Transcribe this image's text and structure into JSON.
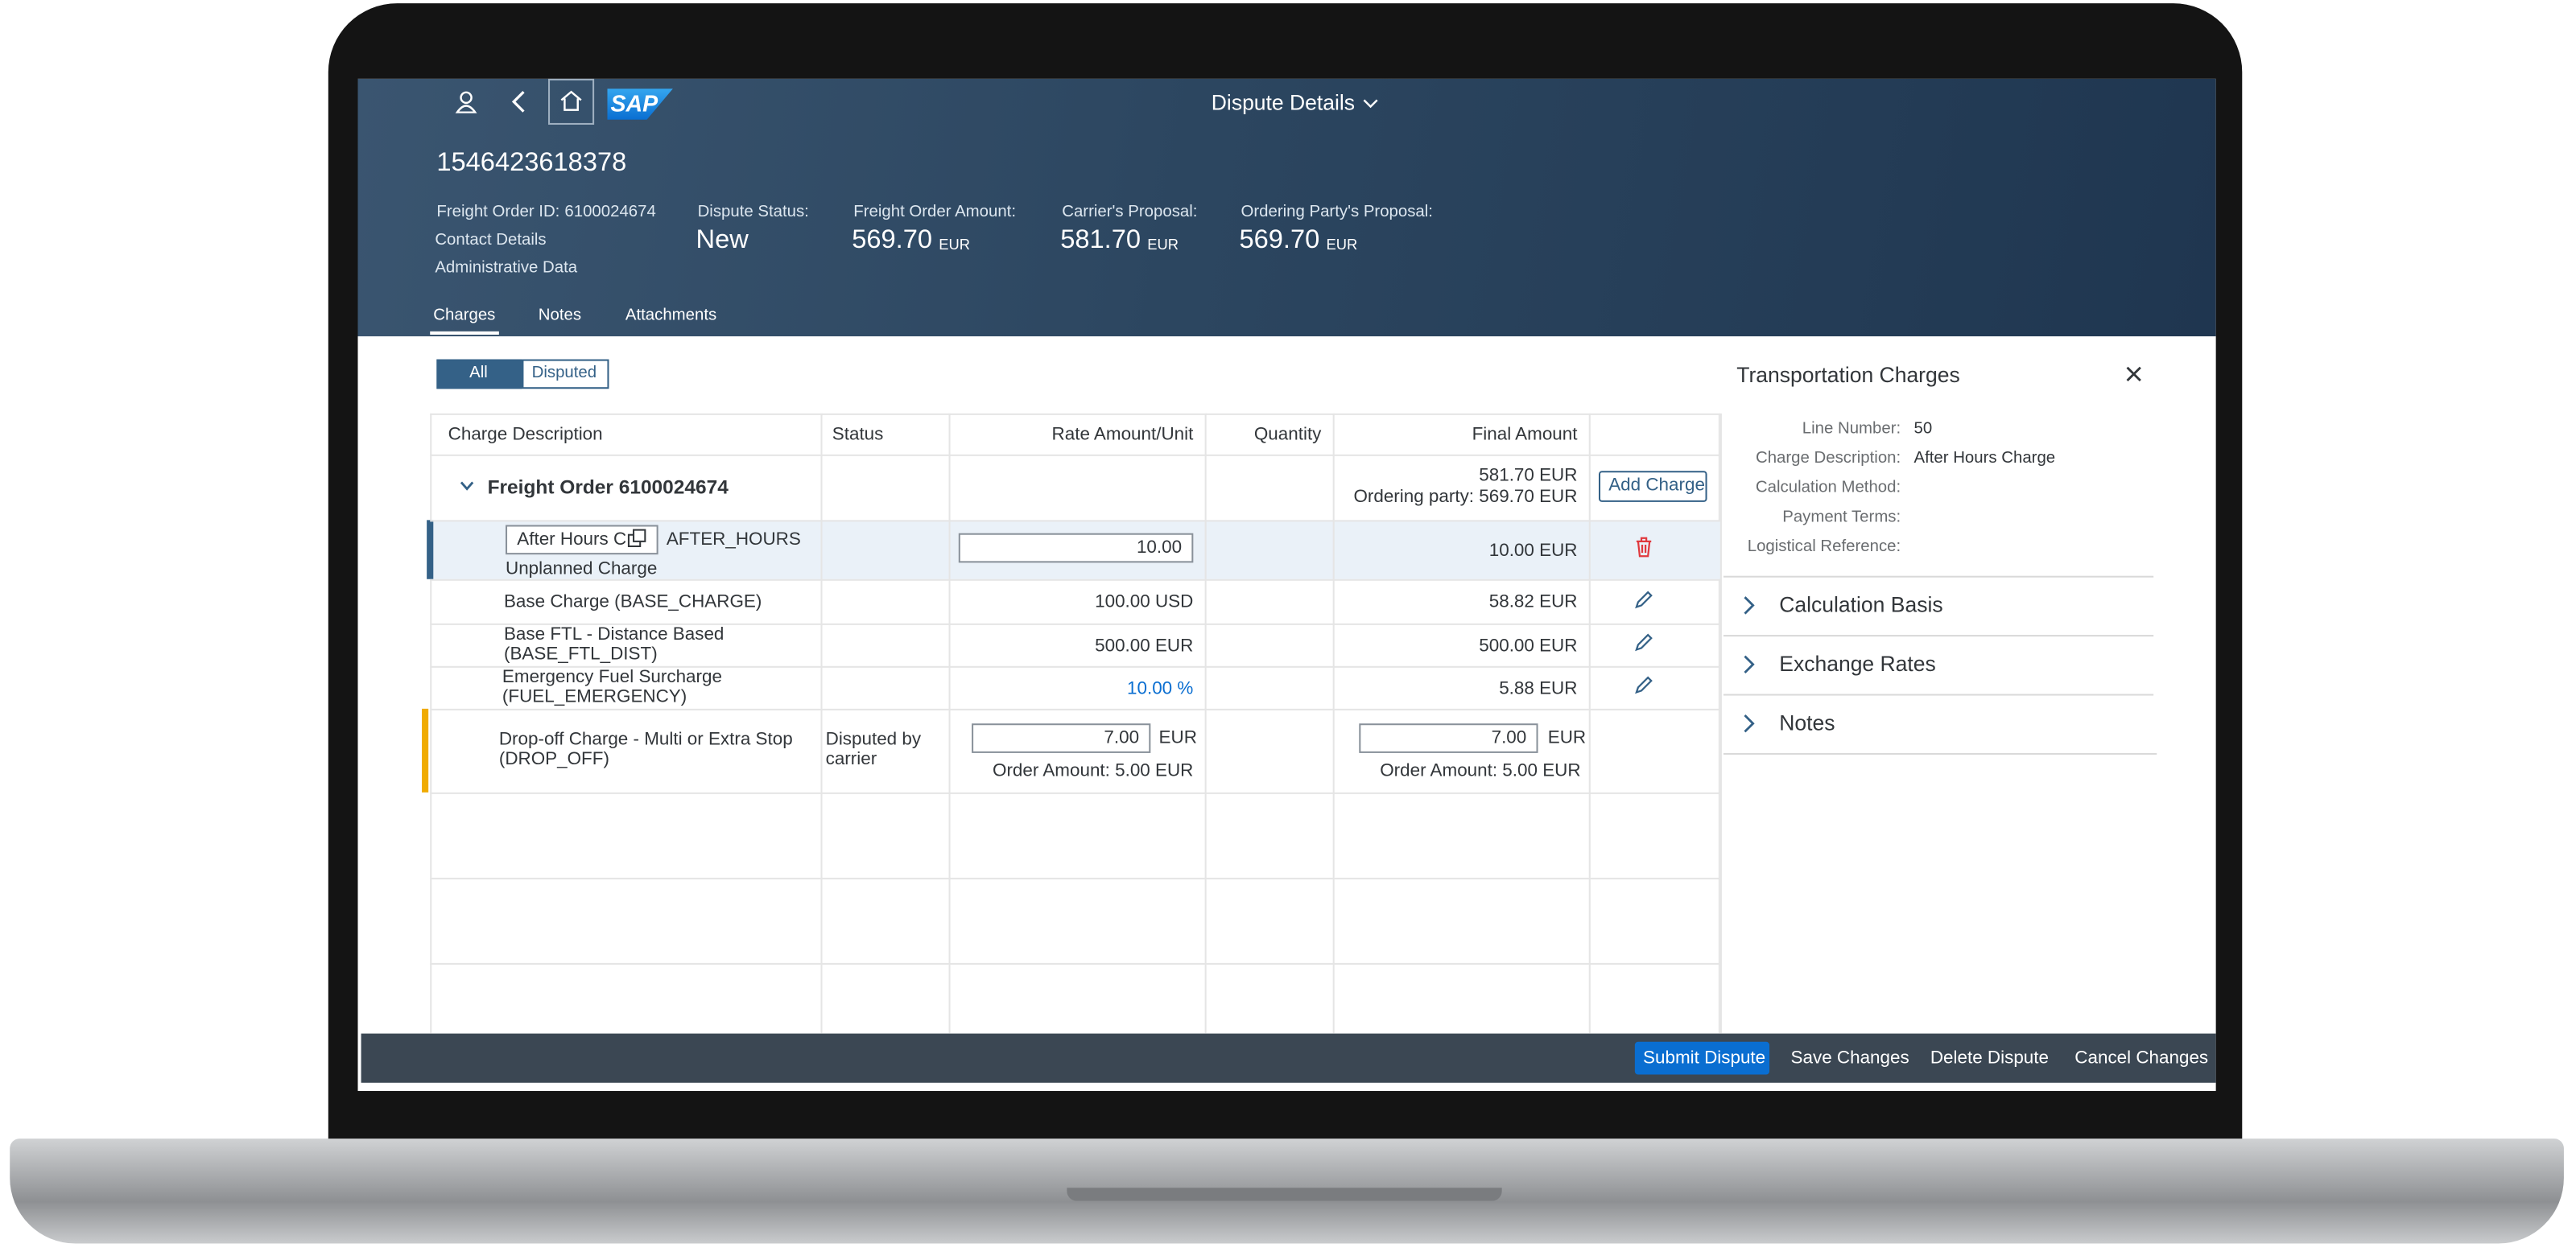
{
  "header": {
    "app_title": "Dispute Details",
    "logo": "SAP",
    "object_id": "1546423618378",
    "freight_order": {
      "label": "Freight Order ID:",
      "value": "6100024674"
    },
    "links": [
      "Contact Details",
      "Administrative Data"
    ],
    "attributes": [
      {
        "label": "Dispute Status:",
        "value": "New"
      },
      {
        "label": "Freight Order Amount:",
        "value": "569.70",
        "unit": "EUR"
      },
      {
        "label": "Carrier's Proposal:",
        "value": "581.70",
        "unit": "EUR"
      },
      {
        "label": "Ordering Party's Proposal:",
        "value": "569.70",
        "unit": "EUR"
      }
    ]
  },
  "tabs": [
    "Charges",
    "Notes",
    "Attachments"
  ],
  "filter": [
    "All",
    "Disputed"
  ],
  "table": {
    "columns": [
      "Charge Description",
      "Status",
      "Rate Amount/Unit",
      "Quantity",
      "Final Amount"
    ],
    "group": {
      "title": "Freight Order 6100024674",
      "final_amount": "581.70 EUR",
      "ordering_party": "Ordering party: 569.70 EUR",
      "action": "Add Charge"
    },
    "rows": [
      {
        "description": "After Hours C",
        "code": "AFTER_HOURS",
        "subtitle": "Unplanned Charge",
        "rate": "10.00",
        "final": "10.00 EUR"
      },
      {
        "description": "Base Charge (BASE_CHARGE)",
        "rate": "100.00 USD",
        "final": "58.82 EUR"
      },
      {
        "description": "Base FTL - Distance Based (BASE_FTL_DIST)",
        "rate": "500.00 EUR",
        "final": "500.00 EUR"
      },
      {
        "description": "Emergency Fuel Surcharge (FUEL_EMERGENCY)",
        "rate": "10.00 %",
        "final": "5.88 EUR"
      },
      {
        "description": "Drop-off Charge - Multi or Extra Stop (DROP_OFF)",
        "status": "Disputed by carrier",
        "rate": "7.00",
        "rate_unit": "EUR",
        "rate_note": "Order Amount: 5.00 EUR",
        "final": "7.00",
        "final_unit": "EUR",
        "final_note": "Order Amount: 5.00 EUR"
      }
    ]
  },
  "side_panel": {
    "title": "Transportation Charges",
    "fields": [
      {
        "label": "Line Number:",
        "value": "50"
      },
      {
        "label": "Charge Description:",
        "value": "After Hours Charge"
      },
      {
        "label": "Calculation Method:"
      },
      {
        "label": "Payment Terms:"
      },
      {
        "label": "Logistical Reference:"
      }
    ],
    "sections": [
      "Calculation Basis",
      "Exchange Rates",
      "Notes"
    ]
  },
  "footer": {
    "buttons": [
      "Submit Dispute",
      "Save Changes",
      "Delete Dispute",
      "Cancel Changes"
    ]
  }
}
